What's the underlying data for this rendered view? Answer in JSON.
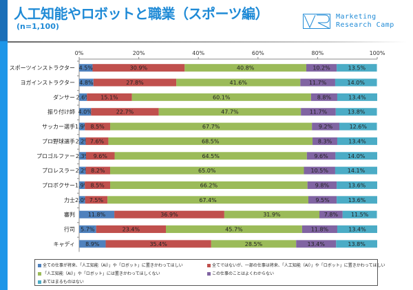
{
  "header": {
    "title": "人工知能やロボットと職業（スポーツ編）",
    "subtitle": "(n=1,100)",
    "logo_text_1": "Marketing",
    "logo_text_2": "Research Camp"
  },
  "chart_data": {
    "type": "bar",
    "orientation": "horizontal",
    "stacked": "percent",
    "xlim": [
      0,
      100
    ],
    "xticks": [
      "0%",
      "20%",
      "40%",
      "60%",
      "80%",
      "100%"
    ],
    "categories": [
      "スポーツインストラクター",
      "ヨガインストラクター",
      "ダンサー",
      "振り付け師",
      "サッカー選手",
      "プロ野球選手",
      "プロゴルファー",
      "プロレスラー",
      "プロボクサー",
      "力士",
      "審判",
      "行司",
      "キャディ"
    ],
    "series": [
      {
        "name": "全ての仕事が将来、「人工知能（AI）」や「ロボット」に置きかわってほしい",
        "color": "#4f81bd",
        "values": [
          4.5,
          4.8,
          2.6,
          4.0,
          1.9,
          2.2,
          2.3,
          2.2,
          1.9,
          2.0,
          11.8,
          5.7,
          8.9
        ]
      },
      {
        "name": "全てではないが、一部の仕事は将来、「人工知能（AI）」や「ロボット」に置きかわってほしい",
        "color": "#c0504d",
        "values": [
          30.9,
          27.8,
          15.1,
          22.7,
          8.5,
          7.6,
          9.6,
          8.2,
          8.5,
          7.5,
          36.9,
          23.4,
          35.4
        ]
      },
      {
        "name": "「人工知能（AI）」や「ロボット」には置きかわってほしくない",
        "color": "#9bbb59",
        "values": [
          40.8,
          41.6,
          60.1,
          47.7,
          67.7,
          68.5,
          64.5,
          65.0,
          66.2,
          67.4,
          31.9,
          45.7,
          28.5
        ]
      },
      {
        "name": "この仕事のことはよくわからない",
        "color": "#8064a2",
        "values": [
          10.2,
          11.7,
          8.8,
          11.7,
          9.2,
          8.3,
          9.6,
          10.5,
          9.8,
          9.5,
          7.8,
          11.8,
          13.4
        ]
      },
      {
        "name": "あてはまるものはない",
        "color": "#4bacc6",
        "values": [
          13.5,
          14.0,
          13.4,
          13.8,
          12.6,
          13.4,
          14.0,
          14.1,
          13.6,
          13.6,
          11.5,
          13.4,
          13.8
        ]
      }
    ],
    "legend_position": "bottom",
    "grid": false
  }
}
